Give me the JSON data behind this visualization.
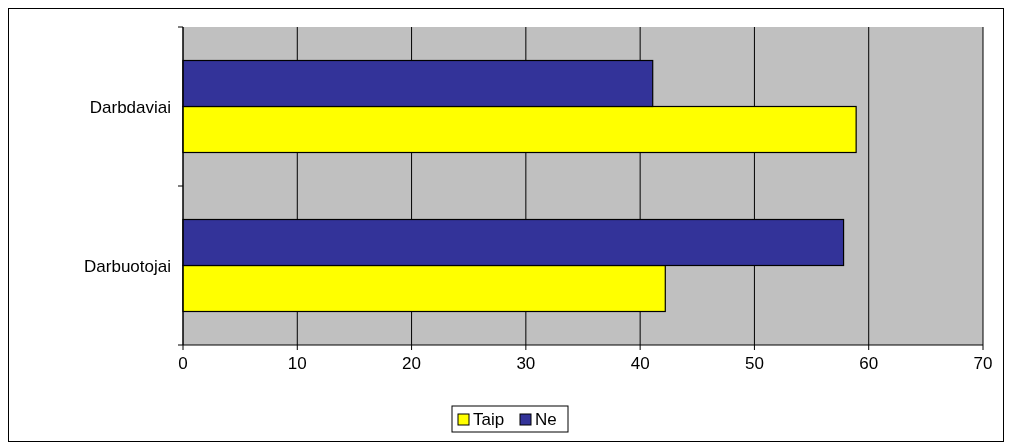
{
  "chart_data": {
    "type": "bar",
    "orientation": "horizontal",
    "categories": [
      "Darbdaviai",
      "Darbuotojai"
    ],
    "series": [
      {
        "name": "Taip",
        "color": "#ffff00",
        "values": [
          58.9,
          42.2
        ]
      },
      {
        "name": "Ne",
        "color": "#333399",
        "values": [
          41.1,
          57.8
        ]
      }
    ],
    "xlim": [
      0,
      70
    ],
    "xticks": [
      0,
      10,
      20,
      30,
      40,
      50,
      60,
      70
    ],
    "grid": "x",
    "legend": "bottom"
  }
}
